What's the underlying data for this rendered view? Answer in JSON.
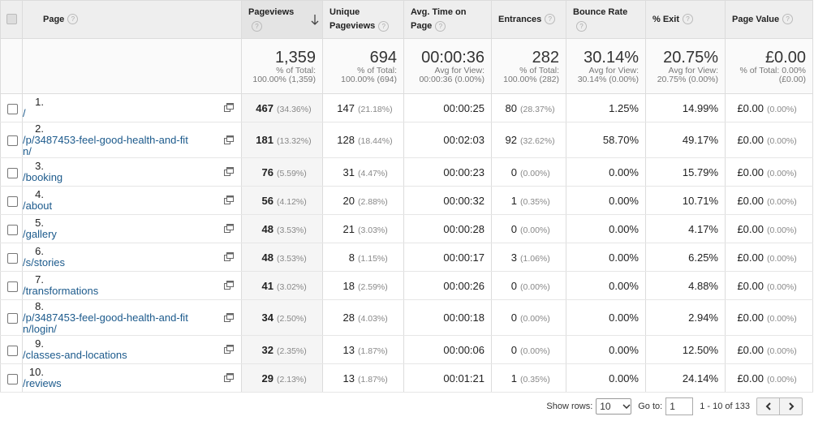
{
  "columns": [
    "Page",
    "Pageviews",
    "Unique Pageviews",
    "Avg. Time on Page",
    "Entrances",
    "Bounce Rate",
    "% Exit",
    "Page Value"
  ],
  "summary": [
    {
      "value": "1,359",
      "lines": [
        "% of Total:",
        "100.00% (1,359)"
      ]
    },
    {
      "value": "694",
      "lines": [
        "% of Total:",
        "100.00% (694)"
      ]
    },
    {
      "value": "00:00:36",
      "lines": [
        "Avg for View:",
        "00:00:36 (0.00%)"
      ]
    },
    {
      "value": "282",
      "lines": [
        "% of Total:",
        "100.00% (282)"
      ]
    },
    {
      "value": "30.14%",
      "lines": [
        "Avg for View:",
        "30.14% (0.00%)"
      ]
    },
    {
      "value": "20.75%",
      "lines": [
        "Avg for View:",
        "20.75% (0.00%)"
      ]
    },
    {
      "value": "£0.00",
      "lines": [
        "% of Total: 0.00%",
        "(£0.00)"
      ]
    }
  ],
  "rows": [
    {
      "index": "1.",
      "page": "/",
      "cells": [
        {
          "value": "467",
          "percent": "(34.36%)"
        },
        {
          "value": "147",
          "percent": "(21.18%)"
        },
        {
          "value": "00:00:25"
        },
        {
          "value": "80",
          "percent": "(28.37%)"
        },
        {
          "value": "1.25%"
        },
        {
          "value": "14.99%"
        },
        {
          "value": "£0.00",
          "percent": "(0.00%)"
        }
      ]
    },
    {
      "index": "2.",
      "page": "/p/3487453-feel-good-health-and-fitn/",
      "cells": [
        {
          "value": "181",
          "percent": "(13.32%)"
        },
        {
          "value": "128",
          "percent": "(18.44%)"
        },
        {
          "value": "00:02:03"
        },
        {
          "value": "92",
          "percent": "(32.62%)"
        },
        {
          "value": "58.70%"
        },
        {
          "value": "49.17%"
        },
        {
          "value": "£0.00",
          "percent": "(0.00%)"
        }
      ]
    },
    {
      "index": "3.",
      "page": "/booking",
      "cells": [
        {
          "value": "76",
          "percent": "(5.59%)"
        },
        {
          "value": "31",
          "percent": "(4.47%)"
        },
        {
          "value": "00:00:23"
        },
        {
          "value": "0",
          "percent": "(0.00%)"
        },
        {
          "value": "0.00%"
        },
        {
          "value": "15.79%"
        },
        {
          "value": "£0.00",
          "percent": "(0.00%)"
        }
      ]
    },
    {
      "index": "4.",
      "page": "/about",
      "cells": [
        {
          "value": "56",
          "percent": "(4.12%)"
        },
        {
          "value": "20",
          "percent": "(2.88%)"
        },
        {
          "value": "00:00:32"
        },
        {
          "value": "1",
          "percent": "(0.35%)"
        },
        {
          "value": "0.00%"
        },
        {
          "value": "10.71%"
        },
        {
          "value": "£0.00",
          "percent": "(0.00%)"
        }
      ]
    },
    {
      "index": "5.",
      "page": "/gallery",
      "cells": [
        {
          "value": "48",
          "percent": "(3.53%)"
        },
        {
          "value": "21",
          "percent": "(3.03%)"
        },
        {
          "value": "00:00:28"
        },
        {
          "value": "0",
          "percent": "(0.00%)"
        },
        {
          "value": "0.00%"
        },
        {
          "value": "4.17%"
        },
        {
          "value": "£0.00",
          "percent": "(0.00%)"
        }
      ]
    },
    {
      "index": "6.",
      "page": "/s/stories",
      "cells": [
        {
          "value": "48",
          "percent": "(3.53%)"
        },
        {
          "value": "8",
          "percent": "(1.15%)"
        },
        {
          "value": "00:00:17"
        },
        {
          "value": "3",
          "percent": "(1.06%)"
        },
        {
          "value": "0.00%"
        },
        {
          "value": "6.25%"
        },
        {
          "value": "£0.00",
          "percent": "(0.00%)"
        }
      ]
    },
    {
      "index": "7.",
      "page": "/transformations",
      "cells": [
        {
          "value": "41",
          "percent": "(3.02%)"
        },
        {
          "value": "18",
          "percent": "(2.59%)"
        },
        {
          "value": "00:00:26"
        },
        {
          "value": "0",
          "percent": "(0.00%)"
        },
        {
          "value": "0.00%"
        },
        {
          "value": "4.88%"
        },
        {
          "value": "£0.00",
          "percent": "(0.00%)"
        }
      ]
    },
    {
      "index": "8.",
      "page": "/p/3487453-feel-good-health-and-fitn/login/",
      "cells": [
        {
          "value": "34",
          "percent": "(2.50%)"
        },
        {
          "value": "28",
          "percent": "(4.03%)"
        },
        {
          "value": "00:00:18"
        },
        {
          "value": "0",
          "percent": "(0.00%)"
        },
        {
          "value": "0.00%"
        },
        {
          "value": "2.94%"
        },
        {
          "value": "£0.00",
          "percent": "(0.00%)"
        }
      ]
    },
    {
      "index": "9.",
      "page": "/classes-and-locations",
      "cells": [
        {
          "value": "32",
          "percent": "(2.35%)"
        },
        {
          "value": "13",
          "percent": "(1.87%)"
        },
        {
          "value": "00:00:06"
        },
        {
          "value": "0",
          "percent": "(0.00%)"
        },
        {
          "value": "0.00%"
        },
        {
          "value": "12.50%"
        },
        {
          "value": "£0.00",
          "percent": "(0.00%)"
        }
      ]
    },
    {
      "index": "10.",
      "page": "/reviews",
      "cells": [
        {
          "value": "29",
          "percent": "(2.13%)"
        },
        {
          "value": "13",
          "percent": "(1.87%)"
        },
        {
          "value": "00:01:21"
        },
        {
          "value": "1",
          "percent": "(0.35%)"
        },
        {
          "value": "0.00%"
        },
        {
          "value": "24.14%"
        },
        {
          "value": "£0.00",
          "percent": "(0.00%)"
        }
      ]
    }
  ],
  "footer": {
    "show_rows_label": "Show rows:",
    "rows_per_page": "10",
    "go_to_label": "Go to:",
    "go_to_value": "1",
    "range": "1 - 10 of 133"
  }
}
